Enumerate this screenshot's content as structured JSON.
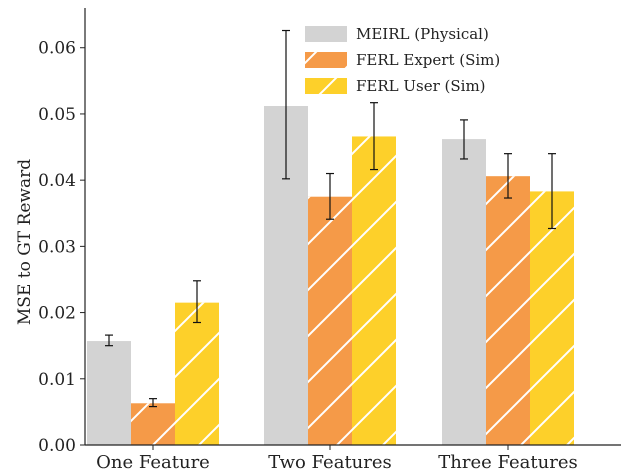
{
  "chart_data": {
    "type": "bar",
    "title": "",
    "xlabel": "",
    "ylabel": "MSE to GT Reward",
    "ylim": [
      0,
      0.066
    ],
    "yticks": [
      "0.00",
      "0.01",
      "0.02",
      "0.03",
      "0.04",
      "0.05",
      "0.06"
    ],
    "grid": false,
    "legend_position": "top-center",
    "categories": [
      "One Feature",
      "Two Features",
      "Three Features"
    ],
    "series": [
      {
        "name": "MEIRL (Physical)",
        "color": "#d3d3d3",
        "hatch": false,
        "values": [
          0.0157,
          0.0512,
          0.0462
        ],
        "err_low": [
          0.015,
          0.0402,
          0.0432
        ],
        "err_high": [
          0.0166,
          0.0626,
          0.0491
        ]
      },
      {
        "name": "FERL Expert (Sim)",
        "color": "#f59a48",
        "hatch": true,
        "values": [
          0.0063,
          0.0375,
          0.0406
        ],
        "err_low": [
          0.0058,
          0.0341,
          0.0373
        ],
        "err_high": [
          0.007,
          0.041,
          0.044
        ]
      },
      {
        "name": "FERL User (Sim)",
        "color": "#fdd02a",
        "hatch": true,
        "values": [
          0.0215,
          0.0466,
          0.0383
        ],
        "err_low": [
          0.0185,
          0.0416,
          0.0327
        ],
        "err_high": [
          0.0248,
          0.0517,
          0.044
        ]
      }
    ]
  }
}
